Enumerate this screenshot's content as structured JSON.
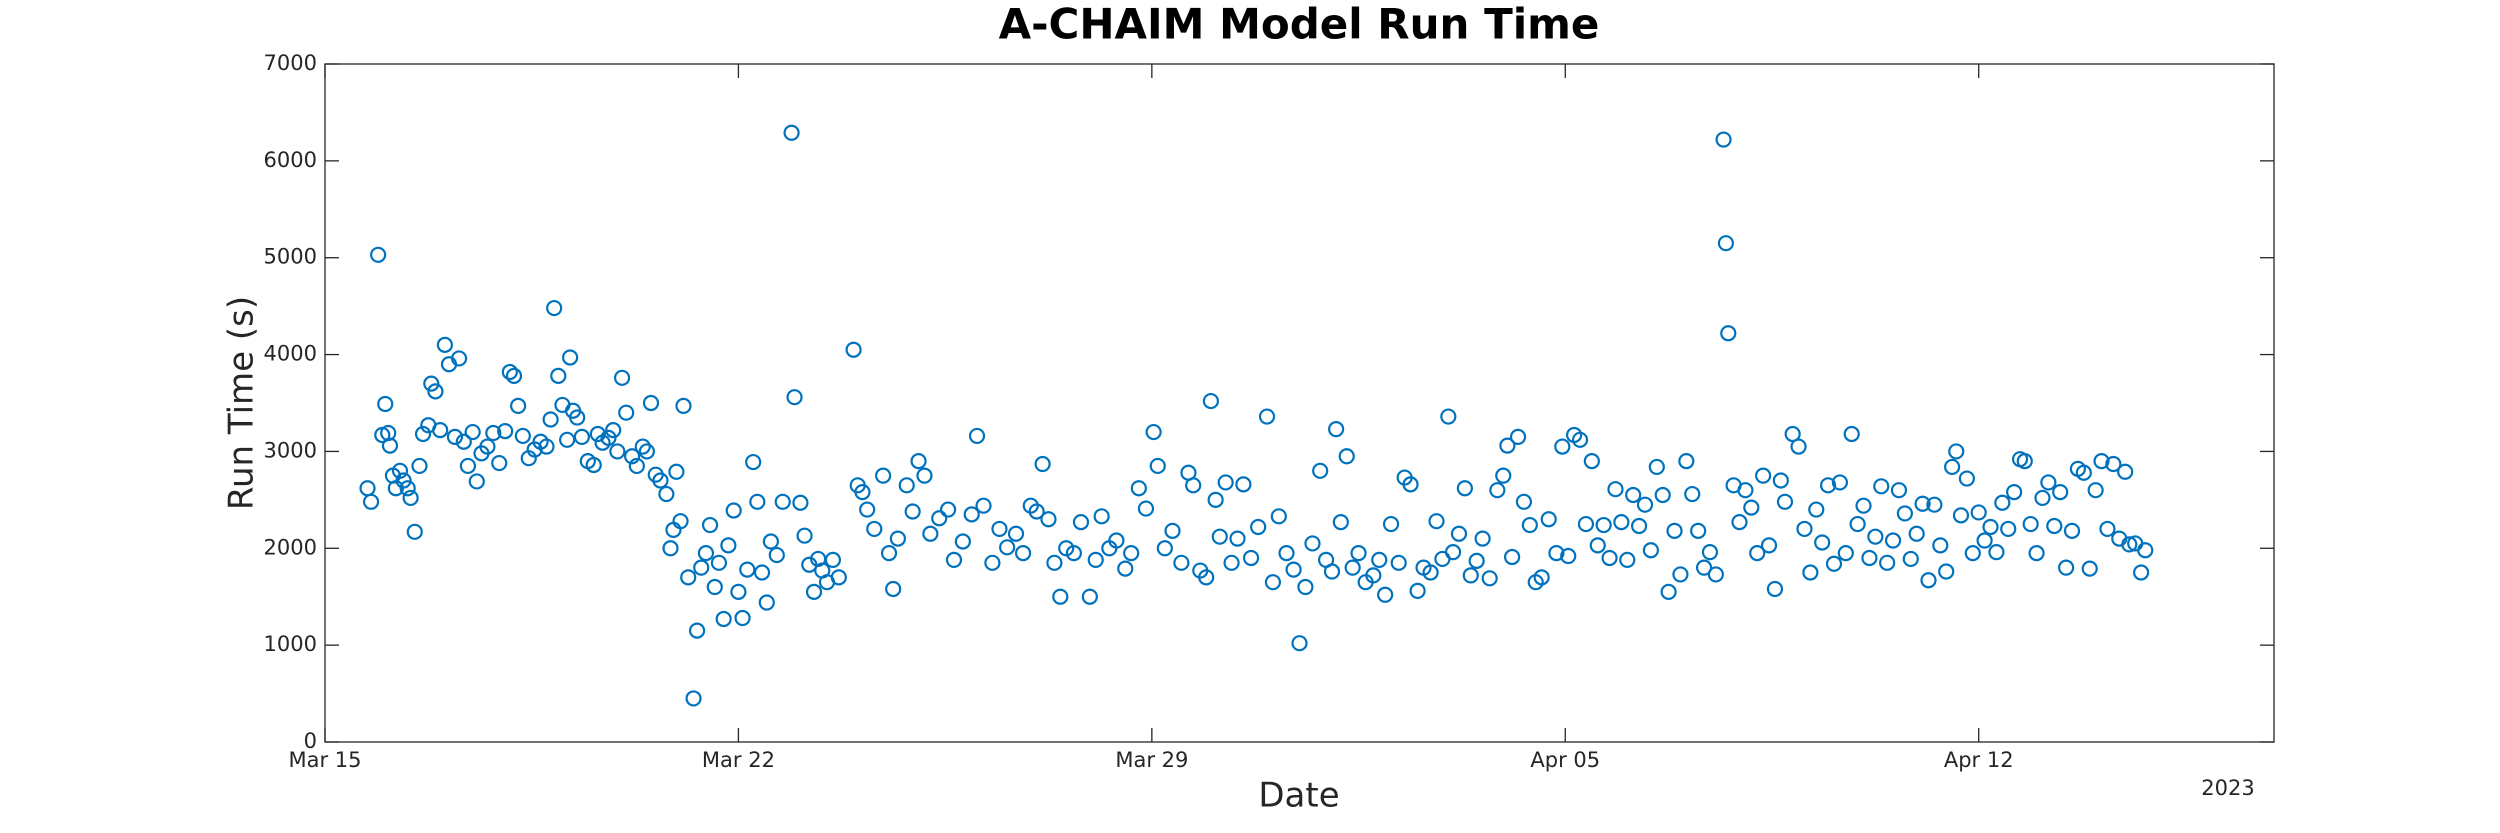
{
  "chart_data": {
    "type": "scatter",
    "title": "A-CHAIM Model Run Time",
    "xlabel": "Date",
    "ylabel": "Run Time (s)",
    "x_secondary_label": "2023",
    "xlim": [
      0,
      33
    ],
    "xticks": [
      {
        "value": 0,
        "label": "Mar 15"
      },
      {
        "value": 7,
        "label": "Mar 22"
      },
      {
        "value": 14,
        "label": "Mar 29"
      },
      {
        "value": 21,
        "label": "Apr 05"
      },
      {
        "value": 28,
        "label": "Apr 12"
      }
    ],
    "ylim": [
      0,
      7000
    ],
    "yticks": [
      0,
      1000,
      2000,
      3000,
      4000,
      5000,
      6000,
      7000
    ],
    "grid": false,
    "x": [
      0.72,
      0.78,
      0.9,
      0.97,
      1.02,
      1.07,
      1.1,
      1.15,
      1.2,
      1.27,
      1.33,
      1.4,
      1.45,
      1.52,
      1.6,
      1.66,
      1.75,
      1.8,
      1.87,
      1.95,
      2.03,
      2.1,
      2.2,
      2.27,
      2.35,
      2.42,
      2.5,
      2.57,
      2.65,
      2.75,
      2.85,
      2.95,
      3.05,
      3.13,
      3.2,
      3.27,
      3.35,
      3.45,
      3.55,
      3.65,
      3.75,
      3.82,
      3.88,
      3.95,
      4.02,
      4.1,
      4.15,
      4.2,
      4.27,
      4.35,
      4.45,
      4.55,
      4.62,
      4.7,
      4.8,
      4.88,
      4.95,
      5.03,
      5.1,
      5.2,
      5.28,
      5.38,
      5.45,
      5.52,
      5.6,
      5.68,
      5.78,
      5.85,
      5.9,
      5.95,
      6.02,
      6.07,
      6.15,
      6.24,
      6.3,
      6.37,
      6.45,
      6.52,
      6.6,
      6.67,
      6.75,
      6.83,
      6.92,
      7.0,
      7.07,
      7.15,
      7.25,
      7.32,
      7.4,
      7.48,
      7.55,
      7.65,
      7.75,
      7.9,
      7.95,
      8.05,
      8.12,
      8.2,
      8.28,
      8.35,
      8.42,
      8.5,
      8.6,
      8.7,
      8.95,
      9.02,
      9.1,
      9.18,
      9.3,
      9.45,
      9.55,
      9.62,
      9.7,
      9.85,
      9.95,
      10.05,
      10.15,
      10.25,
      10.4,
      10.55,
      10.65,
      10.8,
      10.95,
      11.04,
      11.15,
      11.3,
      11.42,
      11.55,
      11.7,
      11.82,
      11.95,
      12.05,
      12.15,
      12.25,
      12.35,
      12.45,
      12.55,
      12.68,
      12.8,
      12.95,
      13.05,
      13.15,
      13.28,
      13.4,
      13.55,
      13.65,
      13.78,
      13.9,
      14.03,
      14.1,
      14.22,
      14.35,
      14.5,
      14.62,
      14.7,
      14.82,
      14.92,
      15.0,
      15.08,
      15.15,
      15.25,
      15.35,
      15.45,
      15.55,
      15.68,
      15.8,
      15.95,
      16.05,
      16.15,
      16.28,
      16.4,
      16.5,
      16.6,
      16.72,
      16.85,
      16.95,
      17.05,
      17.12,
      17.2,
      17.3,
      17.4,
      17.5,
      17.62,
      17.75,
      17.85,
      17.95,
      18.05,
      18.18,
      18.28,
      18.38,
      18.5,
      18.6,
      18.72,
      18.82,
      18.92,
      19.02,
      19.1,
      19.2,
      19.3,
      19.4,
      19.5,
      19.6,
      19.72,
      19.85,
      19.95,
      20.02,
      20.1,
      20.2,
      20.3,
      20.4,
      20.5,
      20.6,
      20.72,
      20.85,
      20.95,
      21.05,
      21.15,
      21.25,
      21.35,
      21.45,
      21.55,
      21.65,
      21.75,
      21.85,
      21.95,
      22.05,
      22.15,
      22.25,
      22.35,
      22.45,
      22.55,
      22.65,
      22.75,
      22.85,
      22.95,
      23.05,
      23.15,
      23.25,
      23.35,
      23.45,
      23.55,
      23.68,
      23.72,
      23.76,
      23.85,
      23.95,
      24.05,
      24.15,
      24.25,
      24.35,
      24.45,
      24.55,
      24.65,
      24.72,
      24.85,
      24.95,
      25.05,
      25.15,
      25.25,
      25.35,
      25.45,
      25.55,
      25.65,
      25.75,
      25.85,
      25.95,
      26.05,
      26.15,
      26.25,
      26.35,
      26.45,
      26.55,
      26.65,
      26.75,
      26.85,
      26.95,
      27.05,
      27.15,
      27.25,
      27.35,
      27.45,
      27.55,
      27.62,
      27.7,
      27.8,
      27.9,
      28.0,
      28.1,
      28.2,
      28.3,
      28.4,
      28.5,
      28.6,
      28.7,
      28.78,
      28.88,
      28.98,
      29.08,
      29.18,
      29.28,
      29.38,
      29.48,
      29.58,
      29.68,
      29.78,
      29.88,
      29.98,
      30.08,
      30.18,
      30.28,
      30.38,
      30.48,
      30.55,
      30.65,
      30.75,
      30.82
    ],
    "series": [
      {
        "color": "#0072bd",
        "values": [
          2620,
          2480,
          5030,
          3170,
          3490,
          3190,
          3060,
          2750,
          2620,
          2800,
          2700,
          2620,
          2520,
          2170,
          2850,
          3180,
          3270,
          3700,
          3620,
          3220,
          4100,
          3900,
          3150,
          3960,
          3100,
          2850,
          3200,
          2690,
          2980,
          3050,
          3190,
          2880,
          3210,
          3820,
          3780,
          3470,
          3160,
          2930,
          3020,
          3100,
          3050,
          3330,
          4480,
          3780,
          3480,
          3120,
          3970,
          3420,
          3350,
          3150,
          2900,
          2860,
          3180,
          3090,
          3140,
          3220,
          3000,
          3760,
          3400,
          2950,
          2850,
          3050,
          3000,
          3500,
          2760,
          2700,
          2560,
          2000,
          2190,
          2790,
          2280,
          3470,
          1700,
          450,
          1150,
          1800,
          1950,
          2240,
          1600,
          1850,
          1270,
          2030,
          2390,
          1550,
          1280,
          1780,
          2890,
          2480,
          1750,
          1440,
          2070,
          1930,
          2480,
          6290,
          3560,
          2470,
          2130,
          1830,
          1550,
          1890,
          1770,
          1650,
          1880,
          1700,
          4050,
          2650,
          2580,
          2400,
          2200,
          2750,
          1950,
          1580,
          2100,
          2650,
          2380,
          2900,
          2750,
          2150,
          2310,
          2400,
          1880,
          2070,
          2350,
          3160,
          2440,
          1850,
          2200,
          2010,
          2150,
          1950,
          2440,
          2380,
          2870,
          2300,
          1850,
          1500,
          2000,
          1950,
          2270,
          1500,
          1880,
          2330,
          2000,
          2080,
          1790,
          1950,
          2620,
          2410,
          3200,
          2850,
          2000,
          2180,
          1850,
          2780,
          2650,
          1770,
          1700,
          3520,
          2500,
          2120,
          2680,
          1850,
          2100,
          2660,
          1900,
          2220,
          3360,
          1650,
          2330,
          1950,
          1780,
          1020,
          1600,
          2050,
          2800,
          1880,
          1760,
          3230,
          2270,
          2950,
          1800,
          1950,
          1650,
          1720,
          1880,
          1520,
          2250,
          1850,
          2730,
          2660,
          1560,
          1800,
          1750,
          2280,
          1890,
          3360,
          1960,
          2150,
          2620,
          1720,
          1870,
          2100,
          1690,
          2600,
          2750,
          3060,
          1910,
          3150,
          2480,
          2240,
          1650,
          1700,
          2300,
          1950,
          3050,
          1920,
          3170,
          3120,
          2250,
          2900,
          2030,
          2240,
          1900,
          2610,
          2270,
          1880,
          2550,
          2230,
          2450,
          1980,
          2840,
          2550,
          1550,
          2180,
          1730,
          2900,
          2560,
          2180,
          1800,
          1960,
          1730,
          6220,
          5150,
          4220,
          2650,
          2270,
          2600,
          2420,
          1950,
          2750,
          2030,
          1580,
          2700,
          2480,
          3180,
          3050,
          2200,
          1750,
          2400,
          2060,
          2650,
          1840,
          2680,
          1950,
          3180,
          2250,
          2440,
          1900,
          2120,
          2640,
          1850,
          2080,
          2600,
          2360,
          1890,
          2150,
          2460,
          1670,
          2450,
          2030,
          1760,
          2840,
          3000,
          2340,
          2720,
          1950,
          2370,
          2080,
          2220,
          1960,
          2470,
          2200,
          2580,
          2920,
          2900,
          2250,
          1950,
          2520,
          2680,
          2230,
          2580,
          1800,
          2180,
          2820,
          2780,
          1790,
          2600,
          2900,
          2200,
          2870,
          2100,
          2790,
          2040,
          2050,
          1750,
          1980
        ]
      }
    ]
  }
}
